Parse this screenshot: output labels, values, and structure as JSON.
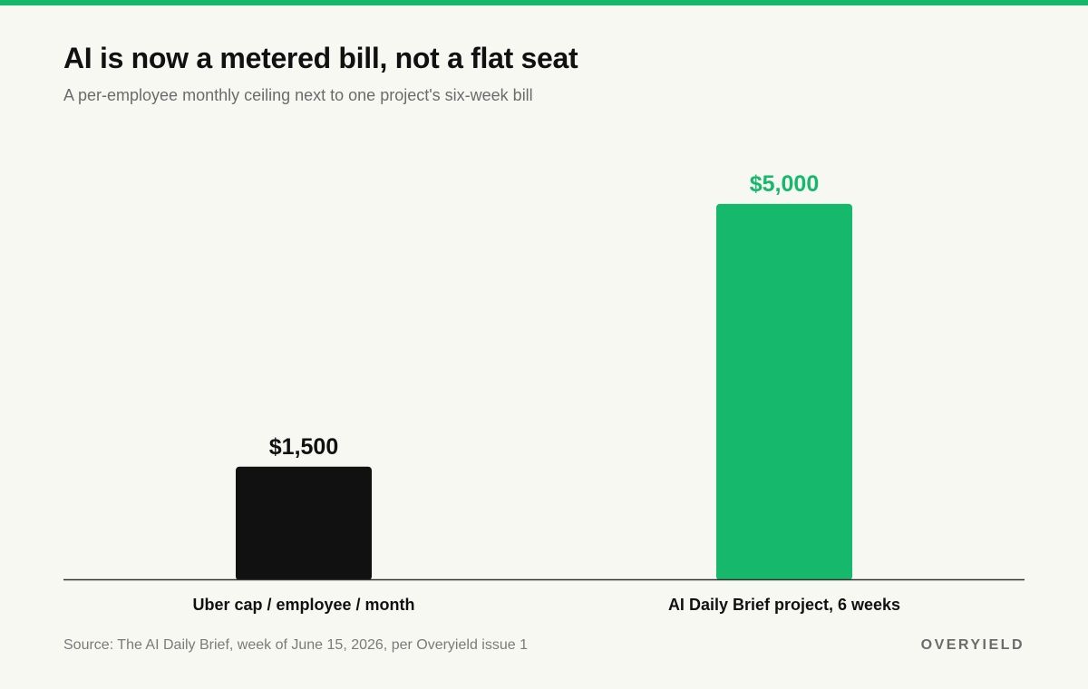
{
  "title": "AI is now a metered bill, not a flat seat",
  "subtitle": "A per-employee monthly ceiling next to one project's six-week bill",
  "source": "Source: The AI Daily Brief, week of June 15, 2026, per Overyield issue 1",
  "brand": "OVERYIELD",
  "colors": {
    "accent": "#16b96b",
    "bar_dark": "#111111",
    "axis": "#333333",
    "background": "#f8f8f3"
  },
  "chart_data": {
    "type": "bar",
    "title": "AI is now a metered bill, not a flat seat",
    "subtitle": "A per-employee monthly ceiling next to one project's six-week bill",
    "categories": [
      "Uber cap / employee / month",
      "AI Daily Brief project, 6 weeks"
    ],
    "values": [
      1500,
      5000
    ],
    "value_labels": [
      "$1,500",
      "$5,000"
    ],
    "bar_colors": [
      "#111111",
      "#16b96b"
    ],
    "label_colors": [
      "#111111",
      "#16b96b"
    ],
    "xlabel": "",
    "ylabel": "",
    "ylim": [
      0,
      5300
    ],
    "grid": false,
    "legend": "none"
  }
}
